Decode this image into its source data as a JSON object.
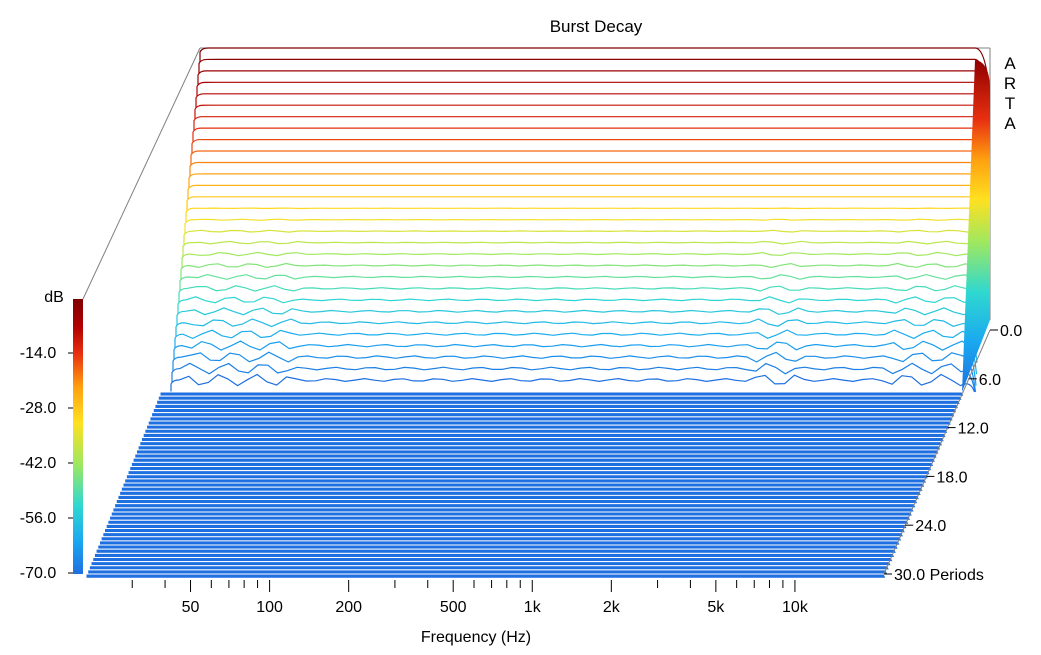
{
  "chart_data": {
    "type": "waterfall-3d",
    "title": "Burst Decay",
    "brand_letters": [
      "A",
      "R",
      "T",
      "A"
    ],
    "xlabel": "Frequency (Hz)",
    "x_scale": "log",
    "xlim": [
      20,
      20000
    ],
    "x_ticks": [
      {
        "value": 50,
        "label": "50"
      },
      {
        "value": 100,
        "label": "100"
      },
      {
        "value": 200,
        "label": "200"
      },
      {
        "value": 500,
        "label": "500"
      },
      {
        "value": 1000,
        "label": "1k"
      },
      {
        "value": 2000,
        "label": "2k"
      },
      {
        "value": 5000,
        "label": "5k"
      },
      {
        "value": 10000,
        "label": "10k"
      }
    ],
    "x_minor_ticks": [
      30,
      40,
      60,
      70,
      80,
      90,
      300,
      400,
      600,
      700,
      800,
      900,
      3000,
      4000,
      6000,
      7000,
      8000,
      9000
    ],
    "color_scale": {
      "label": "dB",
      "ticks": [
        "-14.0",
        "-28.0",
        "-42.0",
        "-56.0",
        "-70.0"
      ],
      "range": [
        -70,
        0
      ],
      "stops": [
        "#1e6fe0",
        "#1aa8f0",
        "#2fd8d0",
        "#9ee860",
        "#ffe020",
        "#ffa010",
        "#e83010",
        "#b00000",
        "#800000"
      ]
    },
    "z_axis": {
      "label": "Periods",
      "range": [
        0,
        30
      ],
      "ticks": [
        {
          "value": 0,
          "label": "0.0"
        },
        {
          "value": 6,
          "label": "6.0"
        },
        {
          "value": 12,
          "label": "12.0"
        },
        {
          "value": 18,
          "label": "18.0"
        },
        {
          "value": 24,
          "label": "24.0"
        },
        {
          "value": 30,
          "label": "30.0 Periods"
        }
      ]
    },
    "series_summary": {
      "front_slices_level_db": -70,
      "back_slices_range_db": [
        -70,
        0
      ],
      "back_slice_count": 30,
      "front_slice_count": 45
    }
  }
}
